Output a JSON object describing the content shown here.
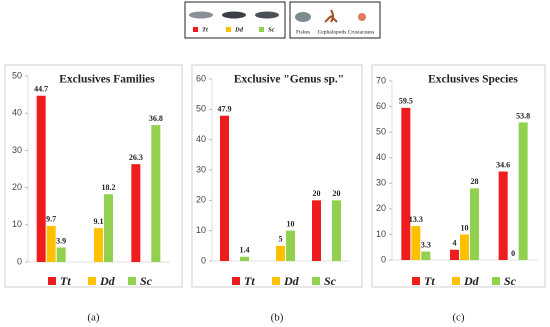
{
  "legend": {
    "series": [
      "Tt",
      "Dd",
      "Sc"
    ],
    "prey": [
      "Fishes",
      "Cephalopods",
      "Crustaceans"
    ]
  },
  "chart_data": [
    {
      "type": "bar",
      "title": "Exclusives Families",
      "caption": "(a)",
      "categories": [
        null,
        null,
        null
      ],
      "ylim": [
        0,
        50
      ],
      "yticks": [
        0,
        10,
        20,
        30,
        40,
        50
      ],
      "series": [
        {
          "name": "Tt",
          "color": "#ee1c1c",
          "values": [
            44.7,
            null,
            26.3
          ]
        },
        {
          "name": "Dd",
          "color": "#ffc000",
          "values": [
            9.7,
            9.1,
            null
          ]
        },
        {
          "name": "Sc",
          "color": "#92d050",
          "values": [
            3.9,
            18.2,
            36.8
          ]
        }
      ]
    },
    {
      "type": "bar",
      "title": "Exclusive \"Genus sp.\"",
      "caption": "(b)",
      "categories": [
        null,
        null,
        null
      ],
      "ylim": [
        0,
        60
      ],
      "yticks": [
        0,
        10,
        20,
        30,
        40,
        50,
        60
      ],
      "series": [
        {
          "name": "Tt",
          "color": "#ee1c1c",
          "values": [
            47.9,
            null,
            20
          ]
        },
        {
          "name": "Dd",
          "color": "#ffc000",
          "values": [
            null,
            5,
            null
          ]
        },
        {
          "name": "Sc",
          "color": "#92d050",
          "values": [
            1.4,
            10,
            20
          ]
        }
      ]
    },
    {
      "type": "bar",
      "title": "Exclusives Species",
      "caption": "(c)",
      "categories": [
        null,
        null,
        null
      ],
      "ylim": [
        0,
        70
      ],
      "yticks": [
        0,
        10,
        20,
        30,
        40,
        50,
        60,
        70
      ],
      "series": [
        {
          "name": "Tt",
          "color": "#ee1c1c",
          "values": [
            59.5,
            4,
            34.6
          ]
        },
        {
          "name": "Dd",
          "color": "#ffc000",
          "values": [
            13.3,
            10,
            0
          ]
        },
        {
          "name": "Sc",
          "color": "#92d050",
          "values": [
            3.3,
            28,
            53.8
          ]
        }
      ]
    }
  ]
}
